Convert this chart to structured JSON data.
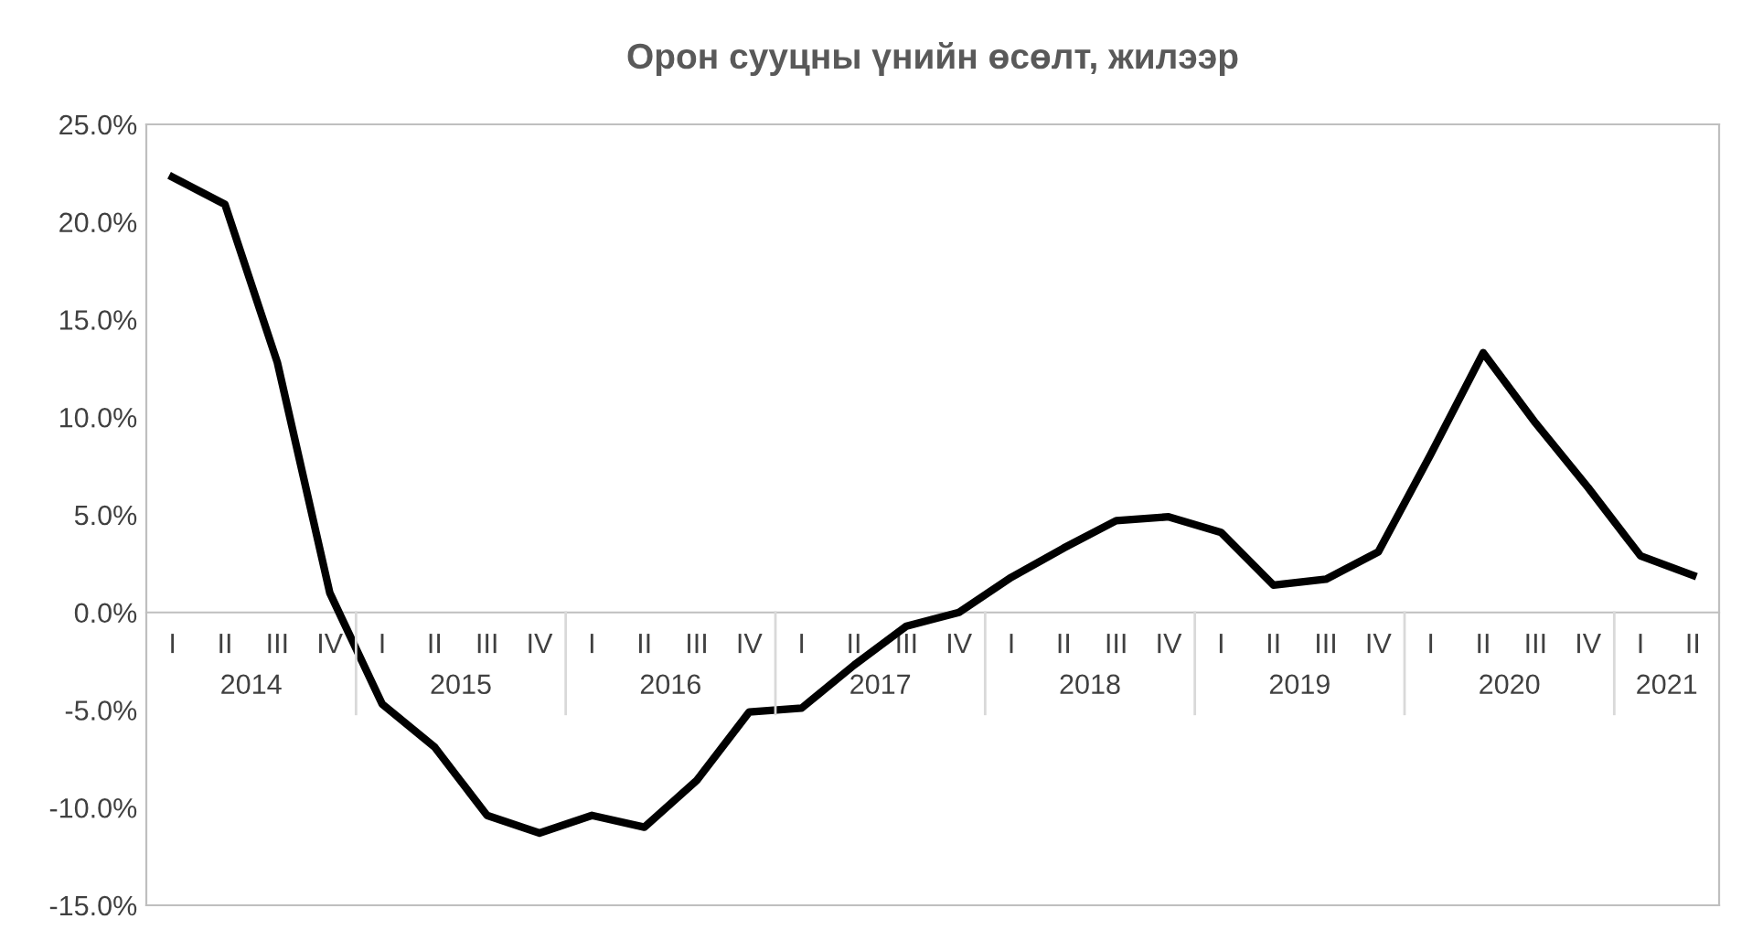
{
  "chart_data": {
    "type": "line",
    "title": "Орон сууцны үнийн өсөлт, жилээр",
    "categories": [
      "I",
      "II",
      "III",
      "IV",
      "I",
      "II",
      "III",
      "IV",
      "I",
      "II",
      "III",
      "IV",
      "I",
      "II",
      "III",
      "IV",
      "I",
      "II",
      "III",
      "IV",
      "I",
      "II",
      "III",
      "IV",
      "I",
      "II",
      "III",
      "IV",
      "I",
      "II"
    ],
    "annotations": [
      "2014",
      "2015",
      "2016",
      "2017",
      "2018",
      "2019",
      "2020",
      "2021"
    ],
    "series": [
      {
        "color": "#000000",
        "values": [
          22.3,
          20.9,
          12.8,
          1.0,
          -4.7,
          -6.9,
          -10.4,
          -11.3,
          -10.4,
          -11.0,
          -8.6,
          -5.1,
          -4.9,
          -2.7,
          -0.7,
          0.0,
          1.8,
          3.3,
          4.7,
          4.9,
          4.1,
          1.4,
          1.7,
          3.1,
          8.1,
          13.3,
          9.7,
          6.4,
          2.9,
          1.9
        ]
      }
    ],
    "ylim": [
      -15,
      25
    ],
    "yticks": [
      {
        "value": -15,
        "label": "-15.0%"
      },
      {
        "value": -10,
        "label": "-10.0%"
      },
      {
        "value": -5,
        "label": "-5.0%"
      },
      {
        "value": 0,
        "label": "0.0%"
      },
      {
        "value": 5,
        "label": "5.0%"
      },
      {
        "value": 10,
        "label": "10.0%"
      },
      {
        "value": 15,
        "label": "15.0%"
      },
      {
        "value": 20,
        "label": "20.0%"
      },
      {
        "value": 25,
        "label": "25.0%"
      }
    ],
    "grid": false,
    "legend": false,
    "marker": "none",
    "line_style": "solid"
  }
}
